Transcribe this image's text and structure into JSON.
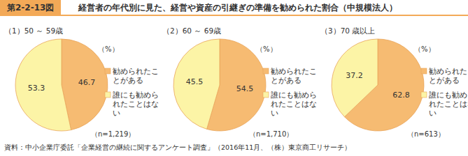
{
  "header": {
    "label": "第2-2-13図",
    "title": "経営者の年代別に見た、経営や資産の引継ぎの準備を勧められた割合（中規模法人）"
  },
  "source": "資料：中小企業庁委託「企業経営の継続に関するアンケート調査」（2016年11月、（株）東京商工リサーチ）",
  "chart_data": [
    {
      "type": "pie",
      "title": "（1）50 ～ 59歳",
      "categories": [
        "勧められたことがある",
        "誰にも勧められたことはない"
      ],
      "values": [
        46.7,
        53.3
      ],
      "colors": [
        "#f6bb72",
        "#fcf4a6"
      ],
      "data_labels": true,
      "annotations": [
        "（%）",
        "（n=1,219）"
      ]
    },
    {
      "type": "pie",
      "title": "（2）60 ～ 69歳",
      "categories": [
        "勧められたことがある",
        "誰にも勧められたことはない"
      ],
      "values": [
        54.5,
        45.5
      ],
      "colors": [
        "#f6bb72",
        "#fcf4a6"
      ],
      "data_labels": true,
      "annotations": [
        "（%）",
        "（n=1,710）"
      ]
    },
    {
      "type": "pie",
      "title": "（3）70 歳以上",
      "categories": [
        "勧められたことがある",
        "誰にも勧められたことはない"
      ],
      "values": [
        62.8,
        37.2
      ],
      "colors": [
        "#f6bb72",
        "#fcf4a6"
      ],
      "data_labels": true,
      "annotations": [
        "（%）",
        "（n=613）"
      ]
    }
  ]
}
